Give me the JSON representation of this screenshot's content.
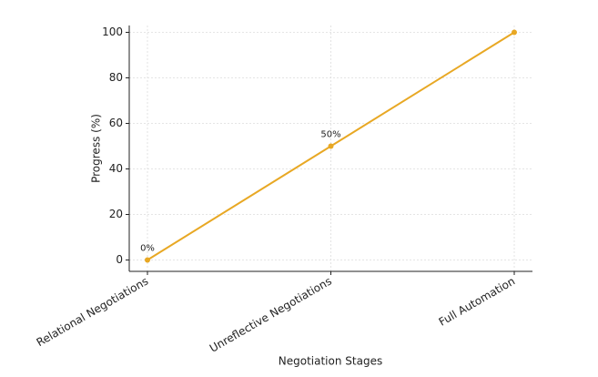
{
  "chart_data": {
    "type": "line",
    "x_label": "Negotiation Stages",
    "y_label": "Progress (%)",
    "categories": [
      "Relational Negotiations",
      "Unreflective Negotiations",
      "Full Automation"
    ],
    "series": [
      {
        "name": "Progress",
        "color": "#e8a824",
        "values": [
          0,
          50,
          100
        ],
        "value_labels": [
          "0%",
          "50%",
          null
        ]
      }
    ],
    "ylim": [
      -5,
      103
    ],
    "yticks": [
      0,
      20,
      40,
      60,
      80,
      100
    ],
    "grid": true
  }
}
